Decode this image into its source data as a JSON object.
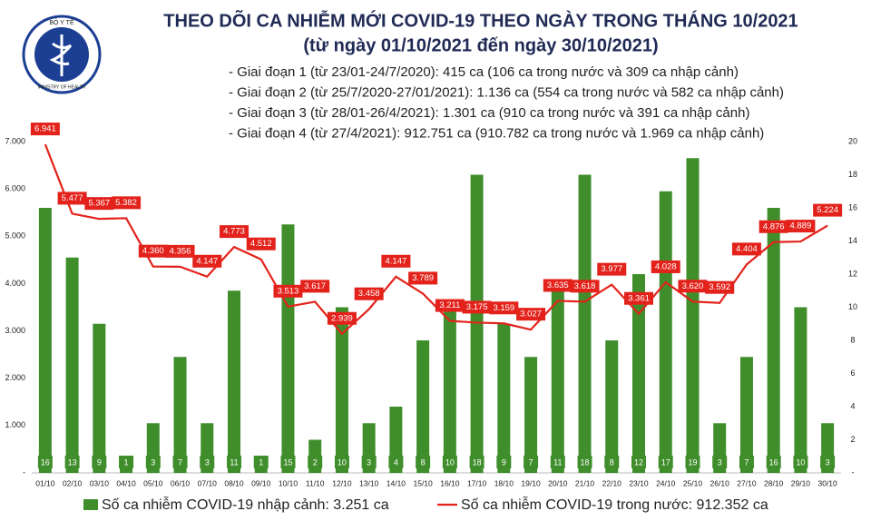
{
  "logo": {
    "top": "BỘ Y TẾ",
    "bottom": "MINISTRY OF HEALTH"
  },
  "chart_data": {
    "type": "combo",
    "title": "THEO DÕI CA NHIỄM MỚI COVID-19 THEO NGÀY TRONG THÁNG 10/2021",
    "subtitle": "(từ ngày 01/10/2021 đến ngày 30/10/2021)",
    "notes": [
      "- Giai đoạn 1 (từ 23/01-24/7/2020): 415 ca (106 ca trong nước và 309 ca nhập cảnh)",
      "- Giai đoạn 2 (từ 25/7/2020-27/01/2021): 1.136 ca (554 ca trong nước và 582 ca nhập cảnh)",
      "- Giai đoạn 3 (từ 28/01-26/4/2021): 1.301 ca (910 ca trong nước và 391 ca nhập cảnh)",
      "- Giai đoạn 4 (từ 27/4/2021): 912.751 ca (910.782 ca trong nước và 1.969 ca nhập cảnh)"
    ],
    "categories": [
      "01/10",
      "02/10",
      "03/10",
      "04/10",
      "05/10",
      "06/10",
      "07/10",
      "08/10",
      "09/10",
      "10/10",
      "11/10",
      "12/10",
      "13/10",
      "14/10",
      "15/10",
      "16/10",
      "17/10",
      "18/10",
      "19/10",
      "20/10",
      "21/10",
      "22/10",
      "23/10",
      "24/10",
      "25/10",
      "26/10",
      "27/10",
      "28/10",
      "29/10",
      "30/10"
    ],
    "series": [
      {
        "name": "Số ca nhiễm COVID-19 nhập cảnh: 3.251 ca",
        "type": "bar",
        "axis": "y2",
        "color": "#3f8e2b",
        "values": [
          16,
          13,
          9,
          1,
          3,
          7,
          3,
          11,
          1,
          15,
          2,
          10,
          3,
          4,
          8,
          10,
          18,
          9,
          7,
          11,
          18,
          8,
          12,
          17,
          19,
          3,
          7,
          16,
          10,
          3
        ]
      },
      {
        "name": "Số ca nhiễm COVID-19 trong nước: 912.352 ca",
        "type": "line",
        "color": "#e3221b",
        "values": [
          6941,
          5477,
          5367,
          5382,
          4360,
          4356,
          4147,
          4773,
          4512,
          3513,
          3617,
          2939,
          3458,
          4147,
          3789,
          3211,
          3175,
          3159,
          3027,
          3635,
          3618,
          3977,
          3361,
          4028,
          3620,
          3592,
          4404,
          4876,
          4889,
          5224
        ],
        "value_labels": [
          "6.941",
          "5.477",
          "5.367",
          "5.382",
          "4.360",
          "4.356",
          "4.147",
          "4.773",
          "4.512",
          "3.513",
          "3.617",
          "2.939",
          "3.458",
          "4.147",
          "3.789",
          "3.211",
          "3.175",
          "3.159",
          "3.027",
          "3.635",
          "3.618",
          "3.977",
          "3.361",
          "4.028",
          "3.620",
          "3.592",
          "4.404",
          "4.876",
          "4.889",
          "5.224"
        ]
      }
    ],
    "ylim": [
      0,
      7000
    ],
    "yticks": [
      {
        "value": 0,
        "label": "-"
      },
      {
        "value": 1000,
        "label": "1.000"
      },
      {
        "value": 2000,
        "label": "2.000"
      },
      {
        "value": 3000,
        "label": "3.000"
      },
      {
        "value": 4000,
        "label": "4.000"
      },
      {
        "value": 5000,
        "label": "5.000"
      },
      {
        "value": 6000,
        "label": "6.000"
      },
      {
        "value": 7000,
        "label": "7.000"
      }
    ],
    "y2lim": [
      0,
      20
    ],
    "y2ticks": [
      {
        "value": 0,
        "label": "-"
      },
      2,
      4,
      6,
      8,
      10,
      12,
      14,
      16,
      18,
      20
    ]
  }
}
